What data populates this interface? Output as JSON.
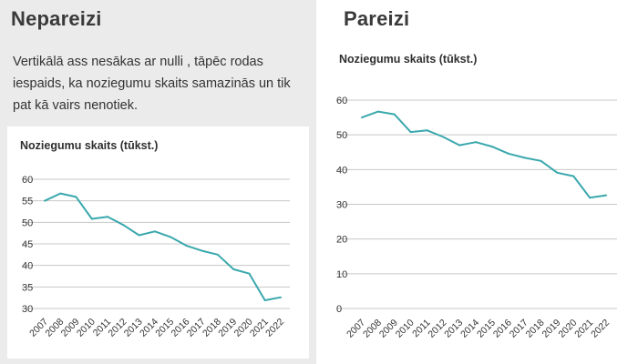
{
  "left": {
    "heading": "Nepareizi",
    "description": "Vertikālā ass nesākas ar nulli , tāpēc rodas iespaids, ka noziegumu skaits samazinās un tik pat kā vairs nenotiek."
  },
  "right": {
    "heading": "Pareizi"
  },
  "colors": {
    "line": "#3aa8ad",
    "grid": "#c8c8c8",
    "left_panel_bg": "#ebebeb"
  },
  "chart_data": [
    {
      "type": "line",
      "title": "Noziegumu skaits (tūkst.)",
      "xlabel": "",
      "ylabel": "",
      "x": [
        "2007",
        "2008",
        "2009",
        "2010",
        "2011",
        "2012",
        "2013",
        "2014",
        "2015",
        "2016",
        "2017",
        "2018",
        "2019",
        "2020",
        "2021",
        "2022"
      ],
      "series": [
        {
          "values": [
            55.0,
            56.7,
            55.9,
            50.8,
            51.3,
            49.4,
            47.0,
            47.9,
            46.6,
            44.6,
            43.4,
            42.5,
            39.1,
            38.1,
            31.9,
            32.6
          ]
        }
      ],
      "ylim": [
        30,
        60
      ],
      "yticks": [
        30,
        35,
        40,
        45,
        50,
        55,
        60
      ],
      "grid": true
    },
    {
      "type": "line",
      "title": "Noziegumu skaits (tūkst.)",
      "xlabel": "",
      "ylabel": "",
      "x": [
        "2007",
        "2008",
        "2009",
        "2010",
        "2011",
        "2012",
        "2013",
        "2014",
        "2015",
        "2016",
        "2017",
        "2018",
        "2019",
        "2020",
        "2021",
        "2022"
      ],
      "series": [
        {
          "values": [
            55.0,
            56.7,
            55.9,
            50.8,
            51.3,
            49.4,
            47.0,
            47.9,
            46.6,
            44.6,
            43.4,
            42.5,
            39.1,
            38.1,
            31.9,
            32.6
          ]
        }
      ],
      "ylim": [
        0,
        60
      ],
      "yticks": [
        0,
        10,
        20,
        30,
        40,
        50,
        60
      ],
      "grid": true
    }
  ]
}
